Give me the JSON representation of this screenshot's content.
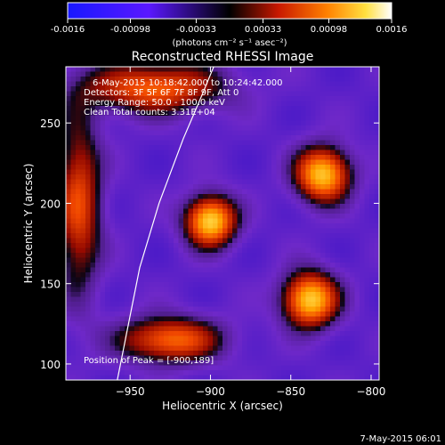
{
  "colorbar": {
    "tick_labels": [
      "-0.0016",
      "-0.00098",
      "-0.00033",
      "0.00033",
      "0.00098",
      "0.0016"
    ],
    "tick_values": [
      -0.0016,
      -0.00098,
      -0.00033,
      0.00033,
      0.00098,
      0.0016
    ],
    "range": [
      -0.0016,
      0.0016
    ],
    "unit_label": "(photons cm⁻² s⁻¹ asec⁻²)"
  },
  "chart_data": {
    "type": "heatmap",
    "title": "Reconstructed RHESSI Image",
    "xlabel": "Heliocentric X (arcsec)",
    "ylabel": "Heliocentric Y (arcsec)",
    "xlim": [
      -990,
      -795
    ],
    "ylim": [
      90,
      285
    ],
    "x_ticks": [
      -950,
      -900,
      -850,
      -800
    ],
    "x_tick_labels": [
      "−950",
      "−900",
      "−850",
      "−800"
    ],
    "y_ticks": [
      100,
      150,
      200,
      250
    ],
    "y_tick_labels": [
      "100",
      "150",
      "200",
      "250"
    ],
    "annotations": [
      "6-May-2015 10:18:42.000 to 10:24:42.000",
      "Detectors: 3F 5F 6F 7F 8F 9F, Att 0",
      "Energy Range: 50.0 - 100.0 keV",
      "Clean     Total counts: 3.31E+04"
    ],
    "peak_label": "Position of Peak = [-900,189]",
    "peak": [
      -900,
      189
    ],
    "sources": [
      {
        "x": -900,
        "y": 189,
        "sx": 11,
        "sy": 11,
        "amp": 1.0
      },
      {
        "x": -838,
        "y": 140,
        "sx": 12,
        "sy": 12,
        "amp": 0.98
      },
      {
        "x": -830,
        "y": 218,
        "sx": 12,
        "sy": 12,
        "amp": 0.95
      },
      {
        "x": -925,
        "y": 115,
        "sx": 22,
        "sy": 10,
        "amp": 0.72
      },
      {
        "x": -935,
        "y": 272,
        "sx": 30,
        "sy": 11,
        "amp": 0.7
      },
      {
        "x": -982,
        "y": 200,
        "sx": 10,
        "sy": 38,
        "amp": 0.62
      }
    ],
    "limb_curve": [
      [
        -958,
        90
      ],
      [
        -952,
        120
      ],
      [
        -944,
        160
      ],
      [
        -932,
        200
      ],
      [
        -917,
        240
      ],
      [
        -905,
        268
      ],
      [
        -898,
        285
      ]
    ]
  },
  "footer": {
    "timestamp": "7-May-2015 06:01"
  }
}
